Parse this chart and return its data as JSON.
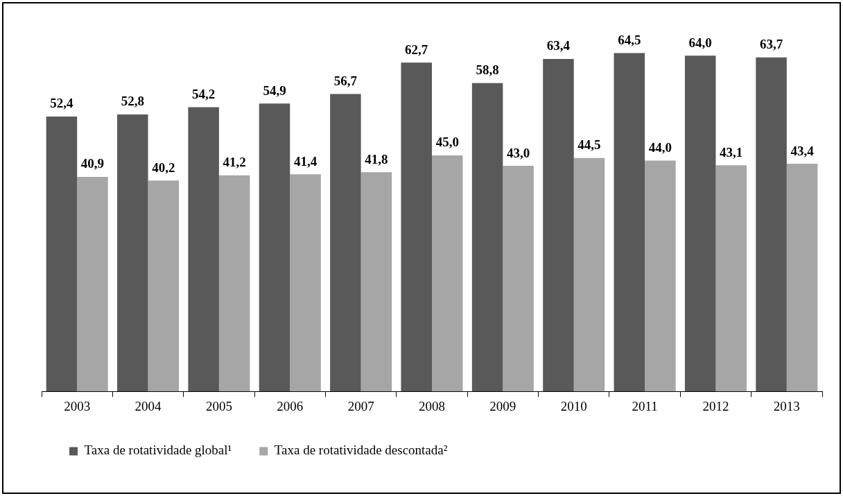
{
  "chart_data": {
    "type": "bar",
    "categories": [
      "2003",
      "2004",
      "2005",
      "2006",
      "2007",
      "2008",
      "2009",
      "2010",
      "2011",
      "2012",
      "2013"
    ],
    "series": [
      {
        "name": "Taxa de rotatividade global¹",
        "color": "#595959",
        "values": [
          52.4,
          52.8,
          54.2,
          54.9,
          56.7,
          62.7,
          58.8,
          63.4,
          64.5,
          64.0,
          63.7
        ],
        "value_labels": [
          "52,4",
          "52,8",
          "54,2",
          "54,9",
          "56,7",
          "62,7",
          "58,8",
          "63,4",
          "64,5",
          "64,0",
          "63,7"
        ]
      },
      {
        "name": "Taxa de rotatividade descontada²",
        "color": "#a6a6a6",
        "values": [
          40.9,
          40.2,
          41.2,
          41.4,
          41.8,
          45.0,
          43.0,
          44.5,
          44.0,
          43.1,
          43.4
        ],
        "value_labels": [
          "40,9",
          "40,2",
          "41,2",
          "41,4",
          "41,8",
          "45,0",
          "43,0",
          "44,5",
          "44,0",
          "43,1",
          "43,4"
        ]
      }
    ],
    "legend": "bottom",
    "grid": false
  }
}
